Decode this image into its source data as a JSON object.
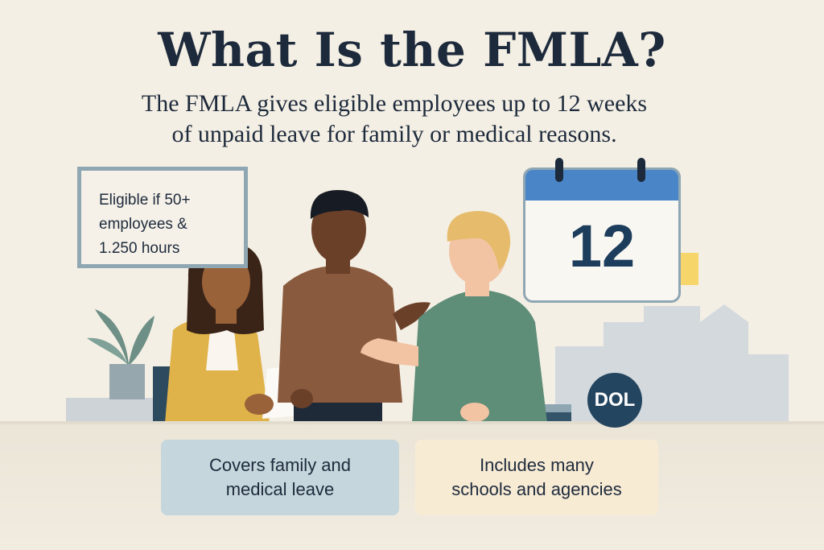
{
  "header": {
    "title": "What Is the FMLA?",
    "subtitle_line1": "The FMLA gives eligible employees up to 12 weeks",
    "subtitle_line2": "of unpaid leave for family or medical reasons."
  },
  "board": {
    "line1": "Eligible if 50+",
    "line2": "employees &",
    "line3": "1.250 hours"
  },
  "calendar": {
    "number": "12"
  },
  "badge": {
    "label": "DOL"
  },
  "cards": {
    "left_line1": "Covers family and",
    "left_line2": "medical leave",
    "right_line1": "Includes many",
    "right_line2": "schools and agencies"
  },
  "colors": {
    "background": "#f4efe4",
    "calendar_header": "#4a86c7",
    "badge": "#24455f",
    "card_left": "#c5d6dc",
    "card_right": "#f8ebd4"
  }
}
